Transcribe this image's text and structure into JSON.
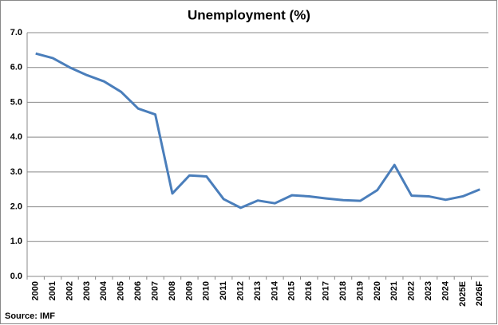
{
  "chart_data": {
    "type": "line",
    "title": "Unemployment (%)",
    "source": "Source: IMF",
    "categories": [
      "2000",
      "2001",
      "2002",
      "2003",
      "2004",
      "2005",
      "2006",
      "2007",
      "2008",
      "2009",
      "2010",
      "2011",
      "2012",
      "2013",
      "2014",
      "2015",
      "2016",
      "2017",
      "2018",
      "2019",
      "2020",
      "2021",
      "2022",
      "2023",
      "2024",
      "2025E",
      "2026F"
    ],
    "values": [
      6.4,
      6.27,
      6.0,
      5.78,
      5.6,
      5.3,
      4.82,
      4.65,
      2.38,
      2.9,
      2.87,
      2.22,
      1.97,
      2.18,
      2.1,
      2.33,
      2.3,
      2.24,
      2.19,
      2.17,
      2.48,
      3.2,
      2.32,
      2.3,
      2.2,
      2.3,
      2.5
    ],
    "color": "#4a7ebb",
    "ylim": [
      0,
      7
    ],
    "yticks": [
      {
        "value": 0,
        "label": "0.0"
      },
      {
        "value": 1,
        "label": "1.0"
      },
      {
        "value": 2,
        "label": "2.0"
      },
      {
        "value": 3,
        "label": "3.0"
      },
      {
        "value": 4,
        "label": "4.0"
      },
      {
        "value": 5,
        "label": "5.0"
      },
      {
        "value": 6,
        "label": "6.0"
      },
      {
        "value": 7,
        "label": "7.0"
      }
    ],
    "grid": true
  }
}
